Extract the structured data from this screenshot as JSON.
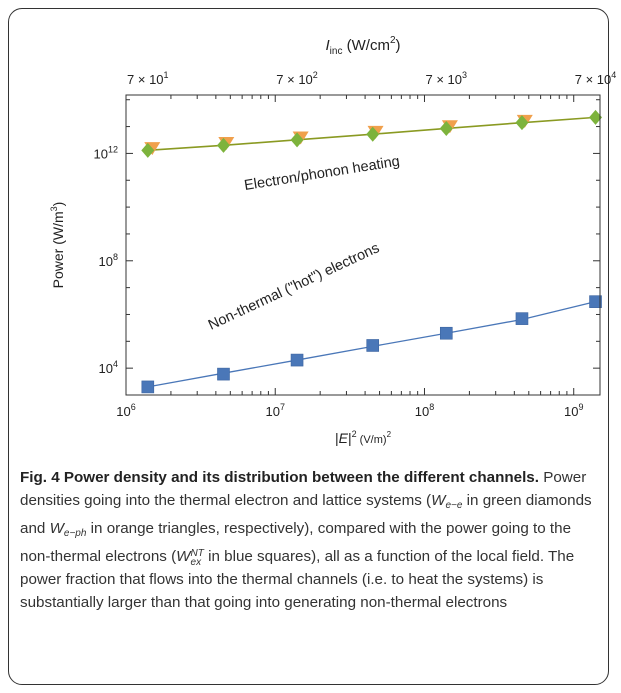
{
  "chart_data": {
    "type": "scatter",
    "x_axis_title": "|E|^2 (V/m)^2",
    "top_axis_title": "I_inc (W/cm^2)",
    "y_axis_title": "Power (W/m^3)",
    "x_scale": "log",
    "y_scale": "log",
    "xlim": [
      1000000,
      1500000000
    ],
    "ylim": [
      1000,
      150000000000000
    ],
    "x_ticks": [
      {
        "value": 1000000,
        "base": "10",
        "exp": "6"
      },
      {
        "value": 10000000,
        "base": "10",
        "exp": "7"
      },
      {
        "value": 100000000,
        "base": "10",
        "exp": "8"
      },
      {
        "value": 1000000000,
        "base": "10",
        "exp": "9"
      }
    ],
    "y_ticks": [
      {
        "value": 10000,
        "base": "10",
        "exp": "4"
      },
      {
        "value": 100000000,
        "base": "10",
        "exp": "8"
      },
      {
        "value": 1000000000000,
        "base": "10",
        "exp": "12"
      }
    ],
    "top_ticks": [
      {
        "x": 1400000,
        "mantissa": "7 × 10",
        "exp": "1"
      },
      {
        "x": 14000000,
        "mantissa": "7 × 10",
        "exp": "2"
      },
      {
        "x": 140000000,
        "mantissa": "7 × 10",
        "exp": "3"
      },
      {
        "x": 1400000000,
        "mantissa": "7 × 10",
        "exp": "4"
      }
    ],
    "series": [
      {
        "marker": "square",
        "color": "#4a77b8",
        "x": [
          1400000,
          4500000,
          14000000,
          45000000,
          140000000,
          450000000,
          1400000000
        ],
        "y": [
          2000,
          6000,
          20000,
          70000,
          200000,
          700000,
          3000000
        ],
        "fit_y": [
          2000,
          6500,
          20000,
          65000,
          200000,
          650000,
          3000000
        ]
      },
      {
        "marker": "diamond",
        "color": "#7db33c",
        "x": [
          1400000,
          4500000,
          14000000,
          45000000,
          140000000,
          450000000,
          1400000000
        ],
        "y": [
          1300000000000,
          2000000000000,
          3200000000000,
          5200000000000,
          8500000000000,
          14000000000000,
          22000000000000
        ]
      },
      {
        "marker": "triangle-down",
        "color": "#f0a04c",
        "x": [
          1500000,
          4700000,
          14800000,
          47000000,
          148000000,
          470000000
        ],
        "y": [
          1450000000000,
          2250000000000,
          3600000000000,
          5800000000000,
          9400000000000,
          15000000000000
        ]
      }
    ],
    "annotations": [
      {
        "text": "Electron/phonon heating"
      },
      {
        "text": "Non-thermal (\"hot\") electrons"
      }
    ],
    "colors": {
      "axis": "#333333",
      "fit_upper": "#8a9a22",
      "fit_lower": "#4a77b8"
    }
  },
  "caption": {
    "title": "Fig. 4 Power density and its distribution between the different channels.",
    "text_1": " Power densities going into the thermal electron and lattice systems (",
    "w1": "W",
    "w1_sub": "e−e",
    "text_2": " in green diamonds and ",
    "w2": "W",
    "w2_sub": "e−ph",
    "text_3": " in orange triangles, respectively), compared with the power going to the non-thermal electrons (",
    "w3": "W",
    "w3_sup": "NT",
    "w3_sub": "ex",
    "text_4": " in blue squares), all as a function of the local field. The power fraction that flows into the thermal channels (i.e. to heat the systems) is substantially larger than that going into generating non-thermal electrons"
  }
}
